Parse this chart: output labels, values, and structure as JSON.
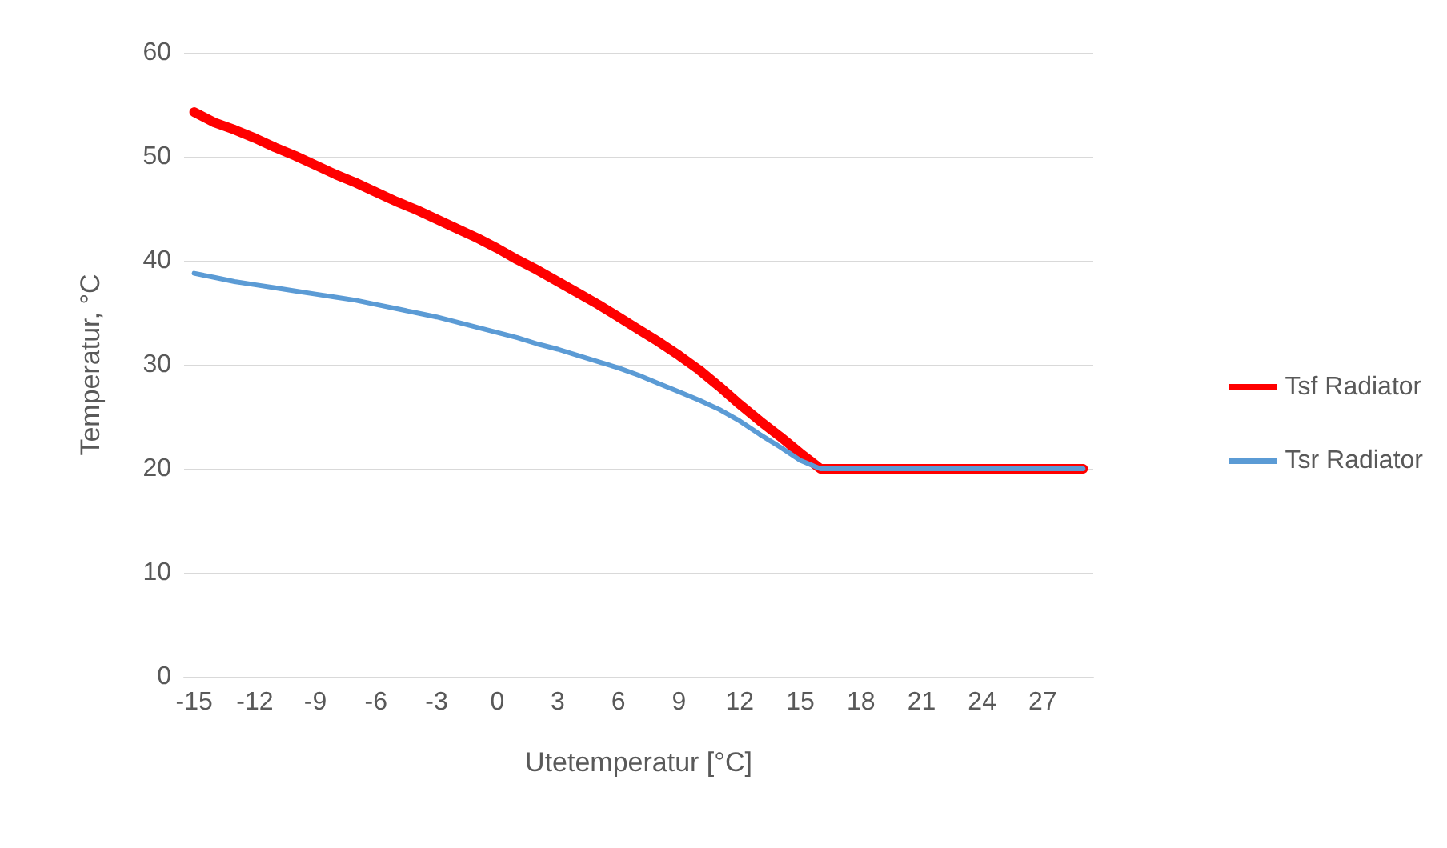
{
  "chart_data": {
    "type": "line",
    "xlabel": "Utetemperatur [°C]",
    "ylabel": "Temperatur, °C",
    "categories": [
      "-15",
      null,
      null,
      "-12",
      null,
      null,
      "-9",
      null,
      null,
      "-6",
      null,
      null,
      "-3",
      null,
      null,
      "0",
      null,
      null,
      "3",
      null,
      null,
      "6",
      null,
      null,
      "9",
      null,
      null,
      "12",
      null,
      null,
      "15",
      null,
      null,
      "18",
      null,
      null,
      "21",
      null,
      null,
      "24",
      null,
      null,
      "27",
      null,
      null
    ],
    "series": [
      {
        "name": "Tsf Radiator",
        "color": "#ff0000",
        "values": [
          54.3,
          53.3,
          52.6,
          51.8,
          50.9,
          50.1,
          49.2,
          48.3,
          47.5,
          46.6,
          45.7,
          44.9,
          44.0,
          43.1,
          42.2,
          41.2,
          40.1,
          39.1,
          38.0,
          36.9,
          35.8,
          34.6,
          33.4,
          32.2,
          30.9,
          29.5,
          27.9,
          26.2,
          24.6,
          23.1,
          21.5,
          20,
          20,
          20,
          20,
          20,
          20,
          20,
          20,
          20,
          20,
          20,
          20,
          20,
          20
        ]
      },
      {
        "name": "Tsr Radiator",
        "color": "#5b9bd5",
        "values": [
          38.8,
          38.4,
          38.0,
          37.7,
          37.4,
          37.1,
          36.8,
          36.5,
          36.2,
          35.8,
          35.4,
          35.0,
          34.6,
          34.1,
          33.6,
          33.1,
          32.6,
          32.0,
          31.5,
          30.9,
          30.3,
          29.7,
          29.0,
          28.2,
          27.4,
          26.6,
          25.7,
          24.6,
          23.3,
          22.1,
          20.8,
          20,
          20,
          20,
          20,
          20,
          20,
          20,
          20,
          20,
          20,
          20,
          20,
          20,
          20
        ]
      }
    ],
    "ylim": [
      0,
      60
    ],
    "yticks": [
      0,
      10,
      20,
      30,
      40,
      50,
      60
    ],
    "grid": "y",
    "legend": "right",
    "marker": "none",
    "line_style": "solid"
  }
}
